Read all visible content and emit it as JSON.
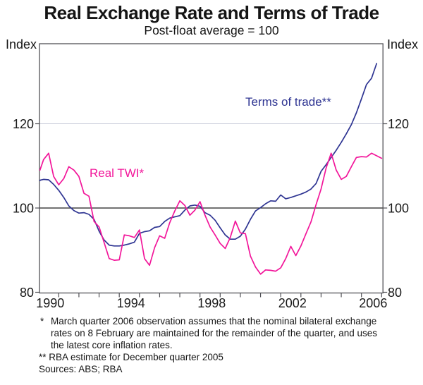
{
  "header": {
    "title": "Real Exchange Rate and Terms of Trade",
    "subtitle": "Post-float average = 100"
  },
  "axes": {
    "unit_label": "Index"
  },
  "series_labels": {
    "terms_of_trade": "Terms of trade**",
    "real_twi": "Real TWI*"
  },
  "footnotes": {
    "fn1_marker": "*",
    "fn1_line1": "March quarter 2006 observation assumes that the nominal bilateral exchange",
    "fn1_line2": "rates on 8 February are maintained for the remainder of the quarter, and uses",
    "fn1_line3": "the latest core inflation rates.",
    "fn2_marker": "**",
    "fn2_text": "RBA estimate for December quarter 2005",
    "sources": "Sources: ABS; RBA"
  },
  "chart_data": {
    "type": "line",
    "title": "Real Exchange Rate and Terms of Trade",
    "subtitle": "Post-float average = 100",
    "ylabel": "Index",
    "ylim": [
      80,
      139
    ],
    "xlim": [
      1989,
      2006.1
    ],
    "grid": "horizontal gridline at 120; solid black reference line at 100; outer frame; no vertical gridlines",
    "legend_position": "inline text labels next to lines",
    "y_ticks": [
      80,
      100,
      120
    ],
    "x_ticks": [
      1990,
      1991,
      1992,
      1993,
      1994,
      1995,
      1996,
      1997,
      1998,
      1999,
      2000,
      2001,
      2002,
      2003,
      2004,
      2005,
      2006
    ],
    "x_tick_labels": [
      1990,
      1994,
      1998,
      2002,
      2006
    ],
    "colors": {
      "axis": "#515156",
      "reference": "#1f1f1f",
      "grid": "#c9ccda",
      "text": "#1a1a1a"
    },
    "x_unit": "year (quarterly observations)",
    "series": [
      {
        "id": "terms-of-trade",
        "name": "Terms of trade**",
        "color": "#2e3492",
        "x_start": 1988.75,
        "x_step": 0.25,
        "values": [
          106.5,
          106.6,
          106.8,
          106.7,
          105.6,
          104.2,
          102.5,
          100.5,
          99.4,
          98.8,
          98.9,
          98.5,
          97.3,
          94.5,
          92.4,
          91.2,
          91.0,
          91.0,
          91.2,
          91.5,
          91.9,
          94.0,
          94.4,
          94.6,
          95.4,
          95.6,
          96.8,
          97.6,
          97.9,
          98.2,
          99.5,
          100.5,
          100.7,
          100.4,
          98.9,
          98.3,
          97.1,
          95.3,
          93.6,
          92.6,
          92.6,
          93.3,
          95.0,
          97.3,
          99.3,
          100.1,
          101.0,
          101.7,
          101.6,
          103.1,
          102.2,
          102.5,
          102.9,
          103.3,
          103.8,
          104.5,
          105.8,
          108.7,
          110.3,
          112.0,
          113.7,
          115.6,
          117.6,
          119.8,
          122.6,
          125.9,
          129.3,
          130.8,
          134.3
        ]
      },
      {
        "id": "real-twi",
        "name": "Real TWI*",
        "color": "#f2169a",
        "x_start": 1989.0,
        "x_step": 0.25,
        "values": [
          109.0,
          111.5,
          113.0,
          107.5,
          105.5,
          107.0,
          109.8,
          109.0,
          107.5,
          103.5,
          102.8,
          96.8,
          95.5,
          91.8,
          88.0,
          87.6,
          87.7,
          93.6,
          93.4,
          93.0,
          94.8,
          88.0,
          86.4,
          90.6,
          93.4,
          92.8,
          96.5,
          99.3,
          101.7,
          100.6,
          98.3,
          99.5,
          101.5,
          98.3,
          95.5,
          93.6,
          91.6,
          90.4,
          93.0,
          96.9,
          94.1,
          93.9,
          88.6,
          86.0,
          84.3,
          85.3,
          85.2,
          85.0,
          85.8,
          88.0,
          90.9,
          88.7,
          91.0,
          93.9,
          96.7,
          100.8,
          104.5,
          109.5,
          113.0,
          109.0,
          106.8,
          107.5,
          109.8,
          112.0,
          112.2,
          112.1,
          113.0,
          112.4,
          111.8
        ]
      }
    ]
  }
}
